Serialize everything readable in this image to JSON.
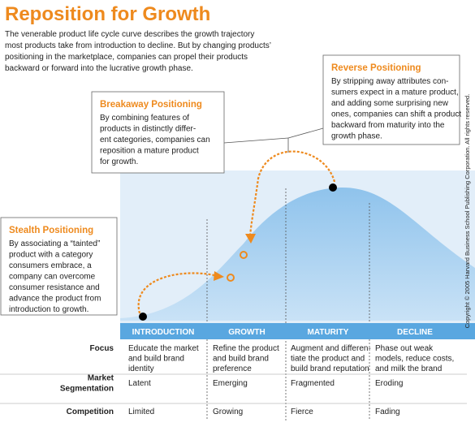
{
  "title": "Reposition for Growth",
  "intro": [
    "The venerable product life cycle curve describes the growth trajectory",
    "most products take from introduction to decline. But by changing products’",
    "positioning in the marketplace, companies can propel their products",
    "backward or forward into the lucrative growth phase."
  ],
  "callouts": [
    {
      "title": "Reverse Positioning",
      "lines": [
        "By stripping away attributes con-",
        "sumers expect in a mature product,",
        "and adding some surprising new",
        "ones, companies can shift a product",
        "backward from maturity into the",
        "growth phase."
      ]
    },
    {
      "title": "Breakaway Positioning",
      "lines": [
        "By combining features of",
        "products in distinctly differ-",
        "ent categories, companies can",
        "reposition a mature product",
        "for growth."
      ]
    },
    {
      "title": "Stealth Positioning",
      "lines": [
        "By associating a “tainted”",
        "product with a category",
        "consumers embrace, a",
        "company can overcome",
        "consumer resistance and",
        "advance the product from",
        "introduction to growth."
      ]
    }
  ],
  "stages": [
    "INTRODUCTION",
    "GROWTH",
    "MATURITY",
    "DECLINE"
  ],
  "rows": [
    {
      "label": [
        "Focus"
      ],
      "cells": [
        [
          "Educate the market",
          "and build brand",
          "identity"
        ],
        [
          "Refine the product",
          "and build brand",
          "preference"
        ],
        [
          "Augment and differen-",
          "tiate the product and",
          "build brand reputation"
        ],
        [
          "Phase out weak",
          "models, reduce costs,",
          "and milk the brand"
        ]
      ]
    },
    {
      "label": [
        "Market",
        "Segmentation"
      ],
      "cells": [
        [
          "Latent"
        ],
        [
          "Emerging"
        ],
        [
          "Fragmented"
        ],
        [
          "Eroding"
        ]
      ]
    },
    {
      "label": [
        "Competition"
      ],
      "cells": [
        [
          "Limited"
        ],
        [
          "Growing"
        ],
        [
          "Fierce"
        ],
        [
          "Fading"
        ]
      ]
    }
  ],
  "copyright": "Copyright © 2005 Harvard Business School Publishing Corporation. All rights reserved."
}
